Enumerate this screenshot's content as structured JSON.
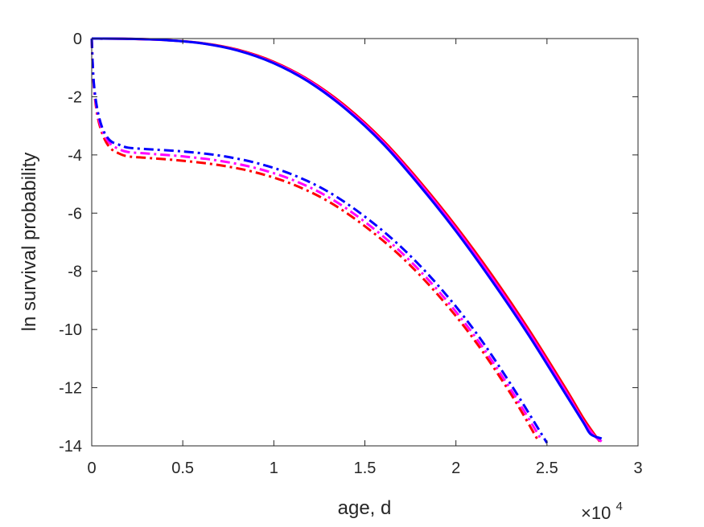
{
  "chart_data": {
    "type": "line",
    "title": "",
    "xlabel": "age, d",
    "ylabel": "ln survival probability",
    "x_exponent_label": {
      "base": "×10",
      "power": "4"
    },
    "xlim": [
      0,
      3
    ],
    "ylim": [
      -14,
      0
    ],
    "x_unit_multiplier": 10000,
    "xticks": [
      0,
      0.5,
      1,
      1.5,
      2,
      2.5,
      3
    ],
    "xtick_labels": [
      "0",
      "0.5",
      "1",
      "1.5",
      "2",
      "2.5",
      "3"
    ],
    "yticks": [
      0,
      -2,
      -4,
      -6,
      -8,
      -10,
      -12,
      -14
    ],
    "ytick_labels": [
      "0",
      "-2",
      "-4",
      "-6",
      "-8",
      "-10",
      "-12",
      "-14"
    ],
    "grid": false,
    "legend": null,
    "series": [
      {
        "color": "#ff0000",
        "style": "solid",
        "x": [
          0,
          0.2,
          0.4,
          0.6,
          0.8,
          1.0,
          1.2,
          1.4,
          1.6,
          1.8,
          2.0,
          2.2,
          2.4,
          2.6,
          2.7,
          2.76,
          2.79
        ],
        "y": [
          0,
          -0.01,
          -0.05,
          -0.15,
          -0.38,
          -0.8,
          -1.45,
          -2.35,
          -3.5,
          -4.9,
          -6.45,
          -8.15,
          -10.0,
          -12.0,
          -13.05,
          -13.6,
          -13.85
        ]
      },
      {
        "color": "#ff00ff",
        "style": "solid",
        "x": [
          0,
          0.2,
          0.4,
          0.6,
          0.8,
          1.0,
          1.2,
          1.4,
          1.6,
          1.8,
          2.0,
          2.2,
          2.4,
          2.6,
          2.7,
          2.76,
          2.8
        ],
        "y": [
          0,
          -0.01,
          -0.05,
          -0.16,
          -0.4,
          -0.83,
          -1.48,
          -2.4,
          -3.56,
          -4.97,
          -6.53,
          -8.25,
          -10.1,
          -12.1,
          -13.15,
          -13.65,
          -13.85
        ]
      },
      {
        "color": "#0000ff",
        "style": "solid",
        "x": [
          0,
          0.2,
          0.4,
          0.6,
          0.8,
          1.0,
          1.2,
          1.4,
          1.6,
          1.8,
          2.0,
          2.2,
          2.4,
          2.6,
          2.7,
          2.74,
          2.8
        ],
        "y": [
          0,
          -0.01,
          -0.05,
          -0.16,
          -0.41,
          -0.85,
          -1.52,
          -2.45,
          -3.62,
          -5.05,
          -6.62,
          -8.35,
          -10.2,
          -12.2,
          -13.2,
          -13.6,
          -13.75
        ]
      },
      {
        "color": "#ff0000",
        "style": "dashdot",
        "x": [
          0,
          0.01,
          0.03,
          0.06,
          0.1,
          0.15,
          0.2,
          0.3,
          0.5,
          0.7,
          0.9,
          1.1,
          1.3,
          1.5,
          1.7,
          1.9,
          2.1,
          2.3,
          2.45
        ],
        "y": [
          0,
          -1.5,
          -2.6,
          -3.3,
          -3.75,
          -3.95,
          -4.05,
          -4.1,
          -4.2,
          -4.35,
          -4.6,
          -5.0,
          -5.6,
          -6.45,
          -7.5,
          -8.8,
          -10.35,
          -12.2,
          -13.8
        ]
      },
      {
        "color": "#ff00ff",
        "style": "dashdot",
        "x": [
          0,
          0.01,
          0.03,
          0.06,
          0.1,
          0.15,
          0.2,
          0.3,
          0.5,
          0.7,
          0.9,
          1.1,
          1.3,
          1.5,
          1.7,
          1.9,
          2.1,
          2.3,
          2.47
        ],
        "y": [
          0,
          -1.45,
          -2.5,
          -3.2,
          -3.6,
          -3.8,
          -3.9,
          -3.95,
          -4.05,
          -4.2,
          -4.45,
          -4.85,
          -5.45,
          -6.3,
          -7.35,
          -8.65,
          -10.2,
          -12.05,
          -13.8
        ]
      },
      {
        "color": "#0000ff",
        "style": "dashdot",
        "x": [
          0,
          0.01,
          0.03,
          0.06,
          0.1,
          0.15,
          0.2,
          0.3,
          0.5,
          0.7,
          0.9,
          1.1,
          1.3,
          1.5,
          1.7,
          1.9,
          2.1,
          2.3,
          2.5
        ],
        "y": [
          0,
          -1.4,
          -2.4,
          -3.1,
          -3.5,
          -3.65,
          -3.75,
          -3.8,
          -3.88,
          -4.02,
          -4.27,
          -4.67,
          -5.27,
          -6.12,
          -7.17,
          -8.47,
          -10.02,
          -11.87,
          -13.9
        ]
      }
    ]
  }
}
